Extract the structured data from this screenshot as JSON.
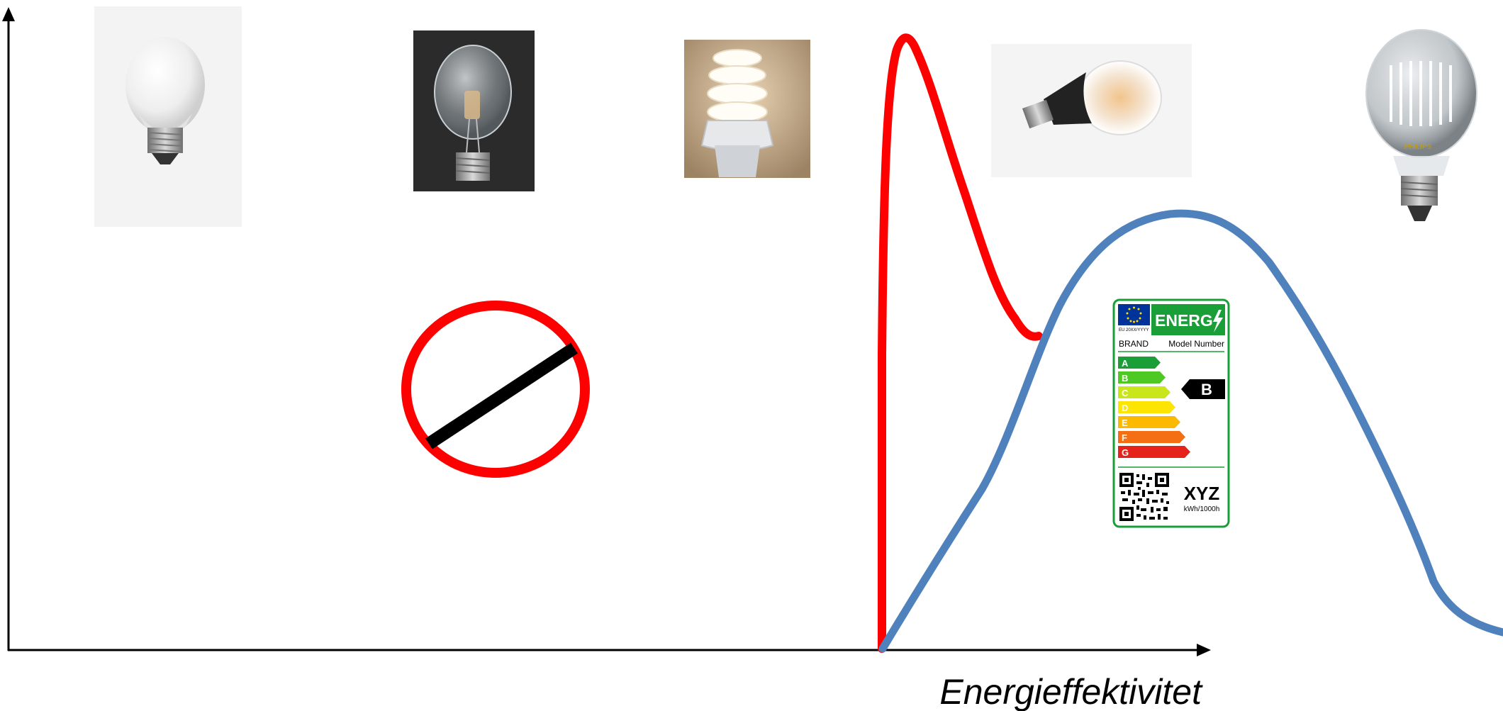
{
  "axes": {
    "xlabel": "Energieffektivitet"
  },
  "products": [
    {
      "name": "incandescent-bulb"
    },
    {
      "name": "halogen-bulb"
    },
    {
      "name": "compact-fluorescent-bulb"
    },
    {
      "name": "led-bulb"
    },
    {
      "name": "led-filament-bulb"
    }
  ],
  "curves": [
    {
      "name": "red-curve",
      "color": "#ff0000"
    },
    {
      "name": "blue-curve",
      "color": "#4f81bd"
    }
  ],
  "prohibition_sign": {
    "ring_color": "#ff0000",
    "bar_color": "#000000"
  },
  "energy_label": {
    "header_text": "ENERG",
    "eu_code": "EU 20XX/YYYY",
    "brand": "BRAND",
    "model": "Model Number",
    "classes": [
      {
        "letter": "A",
        "color": "#1a9e38"
      },
      {
        "letter": "B",
        "color": "#4ec823"
      },
      {
        "letter": "C",
        "color": "#c8e619"
      },
      {
        "letter": "D",
        "color": "#fde401"
      },
      {
        "letter": "E",
        "color": "#fbb900"
      },
      {
        "letter": "F",
        "color": "#f46e14"
      },
      {
        "letter": "G",
        "color": "#e5231b"
      }
    ],
    "rating": "B",
    "consumption_value": "XYZ",
    "consumption_unit": "kWh/1000h",
    "frame_color": "#1a9e38",
    "eu_blue": "#003399",
    "star_color": "#ffdd00"
  }
}
